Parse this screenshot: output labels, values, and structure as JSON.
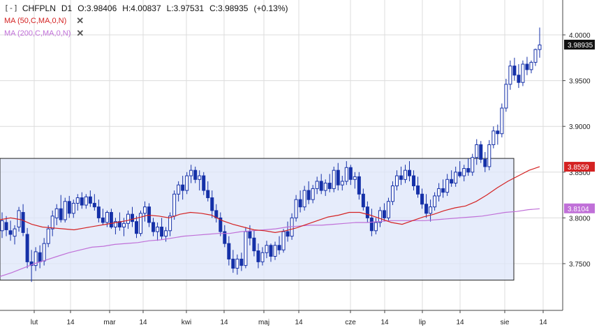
{
  "header": {
    "symbol_box": "[-]",
    "symbol": "CHFPLN",
    "timeframe": "D1",
    "open": "O:3.98406",
    "high": "H:4.00837",
    "low": "L:3.97531",
    "close": "C:3.98935",
    "change": "(+0.13%)"
  },
  "indicators": [
    {
      "label": "MA (50,C,MA,0,N)",
      "color": "#d42222"
    },
    {
      "label": "MA (200,C,MA,0,N)",
      "color": "#c070d8"
    }
  ],
  "badges": {
    "last_price": "3.98935",
    "ma50_value": "3.8559",
    "ma200_value": "3.8104"
  },
  "colors": {
    "candle": "#1530a8",
    "ma50": "#d42222",
    "ma200": "#c070d8",
    "zone_fill": "#dde6fa",
    "grid": "#dcdcdc"
  },
  "chart_data": {
    "type": "candlestick",
    "symbol": "CHFPLN",
    "timeframe": "D1",
    "y_ticks": [
      "4.0000",
      "3.9500",
      "3.9000",
      "3.8500",
      "3.8000",
      "3.7500"
    ],
    "ylim": [
      3.7,
      4.015
    ],
    "x_ticks": [
      "lut",
      "14",
      "mar",
      "14",
      "kwi",
      "14",
      "maj",
      "14",
      "cze",
      "14",
      "lip",
      "14",
      "sie",
      "14"
    ],
    "grid": true,
    "zone": {
      "y_top": 3.865,
      "y_bottom": 3.732
    },
    "candles": [
      {
        "o": 3.786,
        "h": 3.806,
        "l": 3.778,
        "c": 3.797
      },
      {
        "o": 3.795,
        "h": 3.802,
        "l": 3.78,
        "c": 3.787
      },
      {
        "o": 3.786,
        "h": 3.797,
        "l": 3.775,
        "c": 3.782
      },
      {
        "o": 3.78,
        "h": 3.792,
        "l": 3.771,
        "c": 3.788
      },
      {
        "o": 3.79,
        "h": 3.812,
        "l": 3.785,
        "c": 3.808
      },
      {
        "o": 3.806,
        "h": 3.815,
        "l": 3.78,
        "c": 3.784
      },
      {
        "o": 3.782,
        "h": 3.789,
        "l": 3.745,
        "c": 3.752
      },
      {
        "o": 3.752,
        "h": 3.765,
        "l": 3.73,
        "c": 3.748
      },
      {
        "o": 3.748,
        "h": 3.768,
        "l": 3.742,
        "c": 3.763
      },
      {
        "o": 3.762,
        "h": 3.77,
        "l": 3.745,
        "c": 3.752
      },
      {
        "o": 3.753,
        "h": 3.778,
        "l": 3.748,
        "c": 3.772
      },
      {
        "o": 3.772,
        "h": 3.792,
        "l": 3.768,
        "c": 3.788
      },
      {
        "o": 3.788,
        "h": 3.808,
        "l": 3.78,
        "c": 3.802
      },
      {
        "o": 3.8,
        "h": 3.815,
        "l": 3.792,
        "c": 3.81
      },
      {
        "o": 3.81,
        "h": 3.825,
        "l": 3.795,
        "c": 3.798
      },
      {
        "o": 3.798,
        "h": 3.822,
        "l": 3.795,
        "c": 3.818
      },
      {
        "o": 3.818,
        "h": 3.824,
        "l": 3.8,
        "c": 3.805
      },
      {
        "o": 3.805,
        "h": 3.82,
        "l": 3.8,
        "c": 3.816
      },
      {
        "o": 3.816,
        "h": 3.826,
        "l": 3.808,
        "c": 3.822
      },
      {
        "o": 3.822,
        "h": 3.828,
        "l": 3.81,
        "c": 3.814
      },
      {
        "o": 3.814,
        "h": 3.826,
        "l": 3.81,
        "c": 3.823
      },
      {
        "o": 3.823,
        "h": 3.83,
        "l": 3.812,
        "c": 3.816
      },
      {
        "o": 3.816,
        "h": 3.826,
        "l": 3.808,
        "c": 3.812
      },
      {
        "o": 3.812,
        "h": 3.82,
        "l": 3.795,
        "c": 3.8
      },
      {
        "o": 3.8,
        "h": 3.81,
        "l": 3.792,
        "c": 3.795
      },
      {
        "o": 3.795,
        "h": 3.808,
        "l": 3.79,
        "c": 3.806
      },
      {
        "o": 3.806,
        "h": 3.81,
        "l": 3.788,
        "c": 3.79
      },
      {
        "o": 3.79,
        "h": 3.8,
        "l": 3.782,
        "c": 3.796
      },
      {
        "o": 3.796,
        "h": 3.806,
        "l": 3.786,
        "c": 3.79
      },
      {
        "o": 3.79,
        "h": 3.8,
        "l": 3.78,
        "c": 3.794
      },
      {
        "o": 3.794,
        "h": 3.808,
        "l": 3.788,
        "c": 3.804
      },
      {
        "o": 3.804,
        "h": 3.812,
        "l": 3.79,
        "c": 3.796
      },
      {
        "o": 3.796,
        "h": 3.802,
        "l": 3.778,
        "c": 3.783
      },
      {
        "o": 3.783,
        "h": 3.808,
        "l": 3.78,
        "c": 3.805
      },
      {
        "o": 3.805,
        "h": 3.818,
        "l": 3.796,
        "c": 3.812
      },
      {
        "o": 3.812,
        "h": 3.816,
        "l": 3.79,
        "c": 3.795
      },
      {
        "o": 3.795,
        "h": 3.8,
        "l": 3.78,
        "c": 3.785
      },
      {
        "o": 3.785,
        "h": 3.795,
        "l": 3.775,
        "c": 3.79
      },
      {
        "o": 3.79,
        "h": 3.8,
        "l": 3.776,
        "c": 3.78
      },
      {
        "o": 3.78,
        "h": 3.79,
        "l": 3.774,
        "c": 3.786
      },
      {
        "o": 3.786,
        "h": 3.806,
        "l": 3.78,
        "c": 3.802
      },
      {
        "o": 3.802,
        "h": 3.83,
        "l": 3.798,
        "c": 3.826
      },
      {
        "o": 3.826,
        "h": 3.84,
        "l": 3.818,
        "c": 3.836
      },
      {
        "o": 3.836,
        "h": 3.846,
        "l": 3.82,
        "c": 3.83
      },
      {
        "o": 3.83,
        "h": 3.85,
        "l": 3.826,
        "c": 3.846
      },
      {
        "o": 3.846,
        "h": 3.858,
        "l": 3.838,
        "c": 3.852
      },
      {
        "o": 3.852,
        "h": 3.856,
        "l": 3.838,
        "c": 3.842
      },
      {
        "o": 3.842,
        "h": 3.852,
        "l": 3.83,
        "c": 3.846
      },
      {
        "o": 3.846,
        "h": 3.85,
        "l": 3.825,
        "c": 3.83
      },
      {
        "o": 3.83,
        "h": 3.84,
        "l": 3.818,
        "c": 3.822
      },
      {
        "o": 3.822,
        "h": 3.83,
        "l": 3.8,
        "c": 3.808
      },
      {
        "o": 3.808,
        "h": 3.815,
        "l": 3.795,
        "c": 3.8
      },
      {
        "o": 3.8,
        "h": 3.806,
        "l": 3.78,
        "c": 3.785
      },
      {
        "o": 3.785,
        "h": 3.792,
        "l": 3.768,
        "c": 3.772
      },
      {
        "o": 3.772,
        "h": 3.78,
        "l": 3.748,
        "c": 3.755
      },
      {
        "o": 3.755,
        "h": 3.765,
        "l": 3.74,
        "c": 3.745
      },
      {
        "o": 3.745,
        "h": 3.76,
        "l": 3.738,
        "c": 3.755
      },
      {
        "o": 3.755,
        "h": 3.762,
        "l": 3.742,
        "c": 3.748
      },
      {
        "o": 3.748,
        "h": 3.79,
        "l": 3.745,
        "c": 3.785
      },
      {
        "o": 3.785,
        "h": 3.792,
        "l": 3.77,
        "c": 3.778
      },
      {
        "o": 3.778,
        "h": 3.786,
        "l": 3.758,
        "c": 3.764
      },
      {
        "o": 3.764,
        "h": 3.772,
        "l": 3.745,
        "c": 3.752
      },
      {
        "o": 3.752,
        "h": 3.768,
        "l": 3.748,
        "c": 3.762
      },
      {
        "o": 3.762,
        "h": 3.775,
        "l": 3.756,
        "c": 3.77
      },
      {
        "o": 3.77,
        "h": 3.772,
        "l": 3.752,
        "c": 3.758
      },
      {
        "o": 3.758,
        "h": 3.774,
        "l": 3.754,
        "c": 3.77
      },
      {
        "o": 3.77,
        "h": 3.78,
        "l": 3.76,
        "c": 3.765
      },
      {
        "o": 3.765,
        "h": 3.788,
        "l": 3.762,
        "c": 3.785
      },
      {
        "o": 3.785,
        "h": 3.796,
        "l": 3.774,
        "c": 3.78
      },
      {
        "o": 3.78,
        "h": 3.805,
        "l": 3.776,
        "c": 3.8
      },
      {
        "o": 3.8,
        "h": 3.825,
        "l": 3.796,
        "c": 3.82
      },
      {
        "o": 3.82,
        "h": 3.83,
        "l": 3.806,
        "c": 3.812
      },
      {
        "o": 3.812,
        "h": 3.835,
        "l": 3.808,
        "c": 3.83
      },
      {
        "o": 3.83,
        "h": 3.84,
        "l": 3.815,
        "c": 3.82
      },
      {
        "o": 3.82,
        "h": 3.836,
        "l": 3.816,
        "c": 3.832
      },
      {
        "o": 3.832,
        "h": 3.845,
        "l": 3.826,
        "c": 3.84
      },
      {
        "o": 3.84,
        "h": 3.848,
        "l": 3.826,
        "c": 3.83
      },
      {
        "o": 3.83,
        "h": 3.842,
        "l": 3.824,
        "c": 3.838
      },
      {
        "o": 3.838,
        "h": 3.848,
        "l": 3.828,
        "c": 3.832
      },
      {
        "o": 3.832,
        "h": 3.856,
        "l": 3.828,
        "c": 3.852
      },
      {
        "o": 3.852,
        "h": 3.86,
        "l": 3.83,
        "c": 3.836
      },
      {
        "o": 3.836,
        "h": 3.846,
        "l": 3.83,
        "c": 3.84
      },
      {
        "o": 3.84,
        "h": 3.862,
        "l": 3.836,
        "c": 3.855
      },
      {
        "o": 3.855,
        "h": 3.858,
        "l": 3.836,
        "c": 3.842
      },
      {
        "o": 3.842,
        "h": 3.85,
        "l": 3.832,
        "c": 3.845
      },
      {
        "o": 3.845,
        "h": 3.85,
        "l": 3.82,
        "c": 3.826
      },
      {
        "o": 3.826,
        "h": 3.832,
        "l": 3.808,
        "c": 3.812
      },
      {
        "o": 3.812,
        "h": 3.818,
        "l": 3.795,
        "c": 3.8
      },
      {
        "o": 3.8,
        "h": 3.81,
        "l": 3.78,
        "c": 3.786
      },
      {
        "o": 3.786,
        "h": 3.8,
        "l": 3.782,
        "c": 3.795
      },
      {
        "o": 3.795,
        "h": 3.812,
        "l": 3.79,
        "c": 3.808
      },
      {
        "o": 3.808,
        "h": 3.816,
        "l": 3.796,
        "c": 3.8
      },
      {
        "o": 3.8,
        "h": 3.822,
        "l": 3.796,
        "c": 3.818
      },
      {
        "o": 3.818,
        "h": 3.84,
        "l": 3.814,
        "c": 3.835
      },
      {
        "o": 3.835,
        "h": 3.852,
        "l": 3.83,
        "c": 3.846
      },
      {
        "o": 3.846,
        "h": 3.856,
        "l": 3.836,
        "c": 3.842
      },
      {
        "o": 3.842,
        "h": 3.858,
        "l": 3.838,
        "c": 3.852
      },
      {
        "o": 3.852,
        "h": 3.862,
        "l": 3.84,
        "c": 3.846
      },
      {
        "o": 3.846,
        "h": 3.852,
        "l": 3.83,
        "c": 3.835
      },
      {
        "o": 3.835,
        "h": 3.845,
        "l": 3.822,
        "c": 3.826
      },
      {
        "o": 3.826,
        "h": 3.832,
        "l": 3.81,
        "c": 3.815
      },
      {
        "o": 3.815,
        "h": 3.826,
        "l": 3.8,
        "c": 3.805
      },
      {
        "o": 3.805,
        "h": 3.82,
        "l": 3.796,
        "c": 3.812
      },
      {
        "o": 3.812,
        "h": 3.828,
        "l": 3.808,
        "c": 3.824
      },
      {
        "o": 3.824,
        "h": 3.838,
        "l": 3.818,
        "c": 3.832
      },
      {
        "o": 3.832,
        "h": 3.842,
        "l": 3.822,
        "c": 3.828
      },
      {
        "o": 3.828,
        "h": 3.848,
        "l": 3.824,
        "c": 3.842
      },
      {
        "o": 3.842,
        "h": 3.852,
        "l": 3.834,
        "c": 3.838
      },
      {
        "o": 3.838,
        "h": 3.856,
        "l": 3.834,
        "c": 3.85
      },
      {
        "o": 3.85,
        "h": 3.862,
        "l": 3.844,
        "c": 3.846
      },
      {
        "o": 3.846,
        "h": 3.858,
        "l": 3.84,
        "c": 3.854
      },
      {
        "o": 3.854,
        "h": 3.865,
        "l": 3.846,
        "c": 3.85
      },
      {
        "o": 3.85,
        "h": 3.87,
        "l": 3.846,
        "c": 3.866
      },
      {
        "o": 3.866,
        "h": 3.886,
        "l": 3.858,
        "c": 3.88
      },
      {
        "o": 3.88,
        "h": 3.884,
        "l": 3.86,
        "c": 3.864
      },
      {
        "o": 3.864,
        "h": 3.872,
        "l": 3.85,
        "c": 3.856
      },
      {
        "o": 3.856,
        "h": 3.885,
        "l": 3.852,
        "c": 3.88
      },
      {
        "o": 3.88,
        "h": 3.9,
        "l": 3.876,
        "c": 3.895
      },
      {
        "o": 3.895,
        "h": 3.902,
        "l": 3.88,
        "c": 3.892
      },
      {
        "o": 3.892,
        "h": 3.925,
        "l": 3.888,
        "c": 3.92
      },
      {
        "o": 3.92,
        "h": 3.952,
        "l": 3.916,
        "c": 3.946
      },
      {
        "o": 3.946,
        "h": 3.972,
        "l": 3.94,
        "c": 3.966
      },
      {
        "o": 3.966,
        "h": 3.975,
        "l": 3.95,
        "c": 3.956
      },
      {
        "o": 3.956,
        "h": 3.968,
        "l": 3.942,
        "c": 3.948
      },
      {
        "o": 3.948,
        "h": 3.972,
        "l": 3.944,
        "c": 3.968
      },
      {
        "o": 3.968,
        "h": 3.976,
        "l": 3.956,
        "c": 3.962
      },
      {
        "o": 3.962,
        "h": 3.972,
        "l": 3.958,
        "c": 3.97
      },
      {
        "o": 3.97,
        "h": 3.985,
        "l": 3.966,
        "c": 3.984
      },
      {
        "o": 3.984,
        "h": 4.008,
        "l": 3.975,
        "c": 3.989
      }
    ],
    "ma50": [
      3.798,
      3.8,
      3.798,
      3.793,
      3.79,
      3.789,
      3.788,
      3.787,
      3.789,
      3.791,
      3.793,
      3.795,
      3.797,
      3.8,
      3.803,
      3.802,
      3.8,
      3.804,
      3.806,
      3.805,
      3.803,
      3.797,
      3.793,
      3.79,
      3.787,
      3.786,
      3.784,
      3.786,
      3.789,
      3.793,
      3.797,
      3.801,
      3.803,
      3.806,
      3.806,
      3.803,
      3.799,
      3.795,
      3.793,
      3.797,
      3.801,
      3.804,
      3.808,
      3.811,
      3.813,
      3.818,
      3.825,
      3.833,
      3.84,
      3.846,
      3.852,
      3.856
    ],
    "ma200": [
      3.736,
      3.74,
      3.745,
      3.75,
      3.754,
      3.758,
      3.762,
      3.765,
      3.768,
      3.769,
      3.771,
      3.772,
      3.773,
      3.775,
      3.776,
      3.778,
      3.78,
      3.781,
      3.782,
      3.783,
      3.783,
      3.785,
      3.786,
      3.787,
      3.788,
      3.79,
      3.791,
      3.792,
      3.792,
      3.793,
      3.794,
      3.795,
      3.795,
      3.796,
      3.797,
      3.797,
      3.797,
      3.797,
      3.798,
      3.799,
      3.8,
      3.801,
      3.802,
      3.804,
      3.806,
      3.807,
      3.809,
      3.81
    ]
  }
}
